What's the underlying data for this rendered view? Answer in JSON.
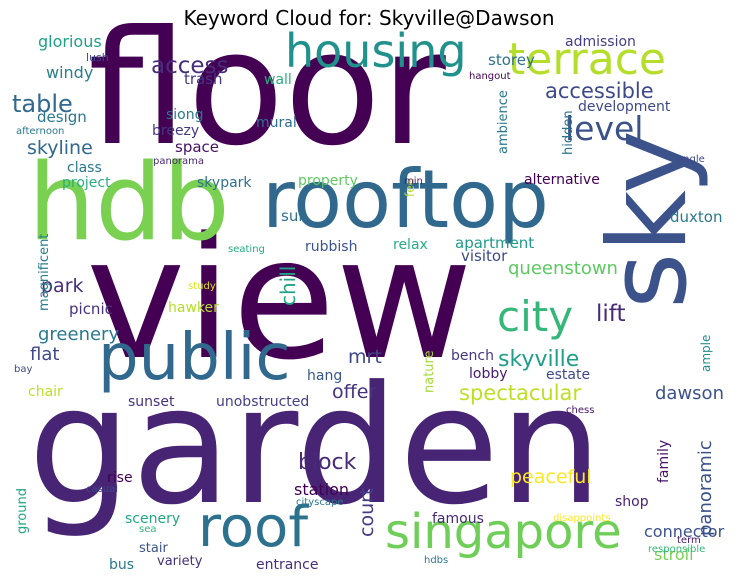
{
  "chart_data": {
    "type": "wordcloud",
    "title": "Keyword Cloud for: Skyville@Dawson",
    "colormap": "viridis",
    "words": [
      {
        "text": "floor",
        "color": "#440154"
      },
      {
        "text": "view",
        "color": "#440154"
      },
      {
        "text": "garden",
        "color": "#482475"
      },
      {
        "text": "sky",
        "color": "#3b528b"
      },
      {
        "text": "hdb",
        "color": "#7ad151"
      },
      {
        "text": "rooftop",
        "color": "#31688e"
      },
      {
        "text": "public",
        "color": "#31688e"
      },
      {
        "text": "housing",
        "color": "#21918c"
      },
      {
        "text": "terrace",
        "color": "#b5de2b"
      },
      {
        "text": "singapore",
        "color": "#6ece58"
      },
      {
        "text": "roof",
        "color": "#2c728e"
      },
      {
        "text": "level",
        "color": "#3b528b"
      },
      {
        "text": "city",
        "color": "#35b779"
      },
      {
        "text": "block",
        "color": "#482878"
      },
      {
        "text": "table",
        "color": "#31688e"
      },
      {
        "text": "access",
        "color": "#472d7b"
      },
      {
        "text": "accessible",
        "color": "#3e4989"
      },
      {
        "text": "skyline",
        "color": "#31688e"
      },
      {
        "text": "lift",
        "color": "#482878"
      },
      {
        "text": "park",
        "color": "#472d7b"
      },
      {
        "text": "spectacular",
        "color": "#bddf26"
      },
      {
        "text": "skyville",
        "color": "#1f9e89"
      },
      {
        "text": "queenstown",
        "color": "#5ec962"
      },
      {
        "text": "greenery",
        "color": "#2a788e"
      },
      {
        "text": "chill",
        "color": "#20a486"
      },
      {
        "text": "mrt",
        "color": "#3e4989"
      },
      {
        "text": "flat",
        "color": "#3e4989"
      },
      {
        "text": "offer",
        "color": "#46327e"
      },
      {
        "text": "dawson",
        "color": "#3b528b"
      },
      {
        "text": "panoramic",
        "color": "#3b528b"
      },
      {
        "text": "peaceful",
        "color": "#fde725"
      },
      {
        "text": "court",
        "color": "#433e85"
      },
      {
        "text": "station",
        "color": "#440154"
      },
      {
        "text": "connector",
        "color": "#3b528b"
      },
      {
        "text": "stroll",
        "color": "#75d054"
      },
      {
        "text": "windy",
        "color": "#287d8e"
      },
      {
        "text": "glorious",
        "color": "#1fa187"
      },
      {
        "text": "trash",
        "color": "#453882"
      },
      {
        "text": "wall",
        "color": "#29af7f"
      },
      {
        "text": "design",
        "color": "#2a788e"
      },
      {
        "text": "storey",
        "color": "#2c728e"
      },
      {
        "text": "admission",
        "color": "#433e85"
      },
      {
        "text": "development",
        "color": "#3e4989"
      },
      {
        "text": "siong",
        "color": "#2a788e"
      },
      {
        "text": "breezy",
        "color": "#453882"
      },
      {
        "text": "space",
        "color": "#471164"
      },
      {
        "text": "mural",
        "color": "#2d708e"
      },
      {
        "text": "class",
        "color": "#2a788e"
      },
      {
        "text": "project",
        "color": "#29af7f"
      },
      {
        "text": "skypark",
        "color": "#2c728e"
      },
      {
        "text": "property",
        "color": "#5ec962"
      },
      {
        "text": "alternative",
        "color": "#440154"
      },
      {
        "text": "duxton",
        "color": "#2a788e"
      },
      {
        "text": "sun",
        "color": "#2d708e"
      },
      {
        "text": "rubbish",
        "color": "#3b528b"
      },
      {
        "text": "relax",
        "color": "#27ad81"
      },
      {
        "text": "apartment",
        "color": "#1f9a8a"
      },
      {
        "text": "visitor",
        "color": "#3e4989"
      },
      {
        "text": "picnic",
        "color": "#46327e"
      },
      {
        "text": "hawker",
        "color": "#b5de2b"
      },
      {
        "text": "magnificent",
        "color": "#287d8e"
      },
      {
        "text": "ambience",
        "color": "#2a788e"
      },
      {
        "text": "hidden",
        "color": "#2c728e"
      },
      {
        "text": "hang",
        "color": "#39568c"
      },
      {
        "text": "lobby",
        "color": "#481a6c"
      },
      {
        "text": "estate",
        "color": "#3e4989"
      },
      {
        "text": "bench",
        "color": "#453882"
      },
      {
        "text": "nature",
        "color": "#a5db36"
      },
      {
        "text": "sunset",
        "color": "#46327e"
      },
      {
        "text": "unobstructed",
        "color": "#433e85"
      },
      {
        "text": "chair",
        "color": "#bddf26"
      },
      {
        "text": "rise",
        "color": "#440154"
      },
      {
        "text": "famous",
        "color": "#482878"
      },
      {
        "text": "shop",
        "color": "#481f70"
      },
      {
        "text": "family",
        "color": "#481467"
      },
      {
        "text": "scenery",
        "color": "#22a785"
      },
      {
        "text": "stair",
        "color": "#3b528b"
      },
      {
        "text": "bus",
        "color": "#2a788e"
      },
      {
        "text": "variety",
        "color": "#46327e"
      },
      {
        "text": "entrance",
        "color": "#472d7b"
      },
      {
        "text": "ground",
        "color": "#22a785"
      },
      {
        "text": "ample",
        "color": "#228c8d"
      },
      {
        "text": "fee",
        "color": "#b5de2b"
      },
      {
        "text": "lush",
        "color": "#3e4989"
      },
      {
        "text": "hangout",
        "color": "#440154"
      },
      {
        "text": "afternoon",
        "color": "#2a788e"
      },
      {
        "text": "panorama",
        "color": "#482878"
      },
      {
        "text": "min",
        "color": "#481a6c"
      },
      {
        "text": "angle",
        "color": "#3e4989"
      },
      {
        "text": "seating",
        "color": "#25ab82"
      },
      {
        "text": "study",
        "color": "#d8e219"
      },
      {
        "text": "bay",
        "color": "#3e4989"
      },
      {
        "text": "casual",
        "color": "#3e4989"
      },
      {
        "text": "cityscape",
        "color": "#2a788e"
      },
      {
        "text": "sea",
        "color": "#32b67a"
      },
      {
        "text": "disappoints",
        "color": "#fde725"
      },
      {
        "text": "chess",
        "color": "#471164"
      },
      {
        "text": "term",
        "color": "#481467"
      },
      {
        "text": "responsible",
        "color": "#35b779"
      },
      {
        "text": "hdbs",
        "color": "#2a788e"
      }
    ]
  }
}
